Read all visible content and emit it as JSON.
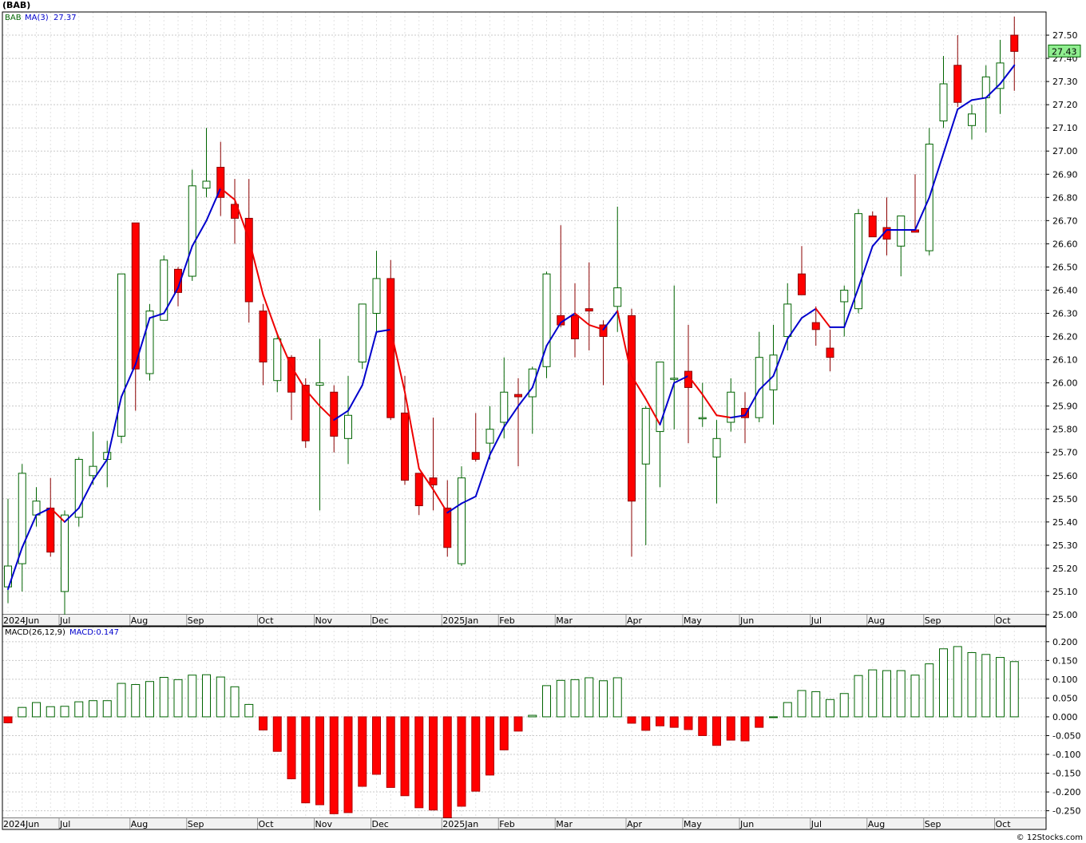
{
  "title": "(BAB)",
  "footer": "© 12Stocks.com",
  "colors": {
    "up": "#006400",
    "down": "#ff0000",
    "ma_up": "#0000cc",
    "ma_down": "#ee0000",
    "grid": "#c8c8c8",
    "last_price_bg": "#90ee90"
  },
  "chart_data": [
    {
      "type": "candlestick",
      "symbol": "BAB",
      "ma_label": "MA(3)",
      "ma_value": "27.37",
      "last_price": "27.43",
      "ylim": [
        25.0,
        27.6
      ],
      "yticks": [
        "25.00",
        "25.10",
        "25.20",
        "25.30",
        "25.40",
        "25.50",
        "25.60",
        "25.70",
        "25.80",
        "25.90",
        "26.00",
        "26.10",
        "26.20",
        "26.30",
        "26.40",
        "26.50",
        "26.60",
        "26.70",
        "26.80",
        "26.90",
        "27.00",
        "27.10",
        "27.20",
        "27.30",
        "27.40",
        "27.50"
      ],
      "month_labels": [
        {
          "label": "2024Jun",
          "week": 0
        },
        {
          "label": "Jul",
          "week": 4
        },
        {
          "label": "Aug",
          "week": 9
        },
        {
          "label": "Sep",
          "week": 13
        },
        {
          "label": "Oct",
          "week": 18
        },
        {
          "label": "Nov",
          "week": 22
        },
        {
          "label": "Dec",
          "week": 26
        },
        {
          "label": "2025Jan",
          "week": 31
        },
        {
          "label": "Feb",
          "week": 35
        },
        {
          "label": "Mar",
          "week": 39
        },
        {
          "label": "Apr",
          "week": 44
        },
        {
          "label": "May",
          "week": 48
        },
        {
          "label": "Jun",
          "week": 52
        },
        {
          "label": "Jul",
          "week": 57
        },
        {
          "label": "Aug",
          "week": 61
        },
        {
          "label": "Sep",
          "week": 65
        },
        {
          "label": "Oct",
          "week": 70
        }
      ],
      "candles": [
        {
          "o": 25.12,
          "h": 25.5,
          "l": 25.05,
          "c": 25.21
        },
        {
          "o": 25.22,
          "h": 25.65,
          "l": 25.1,
          "c": 25.61
        },
        {
          "o": 25.43,
          "h": 25.55,
          "l": 25.38,
          "c": 25.49
        },
        {
          "o": 25.46,
          "h": 25.59,
          "l": 25.25,
          "c": 25.27
        },
        {
          "o": 25.1,
          "h": 25.45,
          "l": 25.0,
          "c": 25.43
        },
        {
          "o": 25.42,
          "h": 25.68,
          "l": 25.38,
          "c": 25.67
        },
        {
          "o": 25.6,
          "h": 25.79,
          "l": 25.56,
          "c": 25.64
        },
        {
          "o": 25.67,
          "h": 25.75,
          "l": 25.55,
          "c": 25.7
        },
        {
          "o": 25.77,
          "h": 26.47,
          "l": 25.74,
          "c": 26.47
        },
        {
          "o": 26.69,
          "h": 26.69,
          "l": 25.88,
          "c": 26.06
        },
        {
          "o": 26.04,
          "h": 26.34,
          "l": 26.01,
          "c": 26.31
        },
        {
          "o": 26.27,
          "h": 26.55,
          "l": 26.27,
          "c": 26.53
        },
        {
          "o": 26.49,
          "h": 26.5,
          "l": 26.33,
          "c": 26.39
        },
        {
          "o": 26.46,
          "h": 26.92,
          "l": 26.44,
          "c": 26.85
        },
        {
          "o": 26.84,
          "h": 27.1,
          "l": 26.8,
          "c": 26.87
        },
        {
          "o": 26.93,
          "h": 27.04,
          "l": 26.72,
          "c": 26.8
        },
        {
          "o": 26.77,
          "h": 26.88,
          "l": 26.6,
          "c": 26.71
        },
        {
          "o": 26.71,
          "h": 26.88,
          "l": 26.26,
          "c": 26.35
        },
        {
          "o": 26.31,
          "h": 26.34,
          "l": 25.99,
          "c": 26.09
        },
        {
          "o": 26.01,
          "h": 26.21,
          "l": 25.96,
          "c": 26.19
        },
        {
          "o": 26.11,
          "h": 26.12,
          "l": 25.84,
          "c": 25.96
        },
        {
          "o": 25.99,
          "h": 26.02,
          "l": 25.72,
          "c": 25.75
        },
        {
          "o": 25.99,
          "h": 26.19,
          "l": 25.45,
          "c": 26.0
        },
        {
          "o": 25.96,
          "h": 25.99,
          "l": 25.7,
          "c": 25.77
        },
        {
          "o": 25.76,
          "h": 26.03,
          "l": 25.65,
          "c": 25.86
        },
        {
          "o": 26.09,
          "h": 26.34,
          "l": 26.06,
          "c": 26.34
        },
        {
          "o": 26.3,
          "h": 26.57,
          "l": 26.21,
          "c": 26.45
        },
        {
          "o": 26.45,
          "h": 26.53,
          "l": 25.84,
          "c": 25.85
        },
        {
          "o": 25.87,
          "h": 26.03,
          "l": 25.56,
          "c": 25.58
        },
        {
          "o": 25.61,
          "h": 25.61,
          "l": 25.43,
          "c": 25.47
        },
        {
          "o": 25.59,
          "h": 25.85,
          "l": 25.45,
          "c": 25.56
        },
        {
          "o": 25.46,
          "h": 25.58,
          "l": 25.25,
          "c": 25.29
        },
        {
          "o": 25.22,
          "h": 25.64,
          "l": 25.21,
          "c": 25.59
        },
        {
          "o": 25.7,
          "h": 25.87,
          "l": 25.66,
          "c": 25.67
        },
        {
          "o": 25.74,
          "h": 25.9,
          "l": 25.67,
          "c": 25.8
        },
        {
          "o": 25.83,
          "h": 26.11,
          "l": 25.76,
          "c": 25.96
        },
        {
          "o": 25.95,
          "h": 26.02,
          "l": 25.64,
          "c": 25.94
        },
        {
          "o": 25.94,
          "h": 26.07,
          "l": 25.78,
          "c": 26.06
        },
        {
          "o": 26.07,
          "h": 26.48,
          "l": 26.02,
          "c": 26.47
        },
        {
          "o": 26.29,
          "h": 26.68,
          "l": 26.24,
          "c": 26.25
        },
        {
          "o": 26.29,
          "h": 26.43,
          "l": 26.11,
          "c": 26.19
        },
        {
          "o": 26.32,
          "h": 26.52,
          "l": 26.14,
          "c": 26.31
        },
        {
          "o": 26.25,
          "h": 26.27,
          "l": 25.99,
          "c": 26.2
        },
        {
          "o": 26.33,
          "h": 26.76,
          "l": 26.22,
          "c": 26.41
        },
        {
          "o": 26.29,
          "h": 26.32,
          "l": 25.25,
          "c": 25.49
        },
        {
          "o": 25.65,
          "h": 25.9,
          "l": 25.3,
          "c": 25.89
        },
        {
          "o": 25.79,
          "h": 26.09,
          "l": 25.55,
          "c": 26.09
        },
        {
          "o": 26.02,
          "h": 26.42,
          "l": 25.8,
          "c": 26.02
        },
        {
          "o": 26.05,
          "h": 26.25,
          "l": 25.74,
          "c": 25.98
        },
        {
          "o": 25.85,
          "h": 26.0,
          "l": 25.81,
          "c": 25.85
        },
        {
          "o": 25.68,
          "h": 25.84,
          "l": 25.48,
          "c": 25.76
        },
        {
          "o": 25.83,
          "h": 26.02,
          "l": 25.79,
          "c": 25.96
        },
        {
          "o": 25.89,
          "h": 25.96,
          "l": 25.74,
          "c": 25.85
        },
        {
          "o": 25.85,
          "h": 26.22,
          "l": 25.83,
          "c": 26.11
        },
        {
          "o": 25.97,
          "h": 26.25,
          "l": 25.82,
          "c": 26.12
        },
        {
          "o": 26.2,
          "h": 26.43,
          "l": 26.14,
          "c": 26.34
        },
        {
          "o": 26.47,
          "h": 26.59,
          "l": 26.38,
          "c": 26.38
        },
        {
          "o": 26.26,
          "h": 26.33,
          "l": 26.16,
          "c": 26.23
        },
        {
          "o": 26.15,
          "h": 26.23,
          "l": 26.05,
          "c": 26.11
        },
        {
          "o": 26.35,
          "h": 26.42,
          "l": 26.2,
          "c": 26.4
        },
        {
          "o": 26.32,
          "h": 26.75,
          "l": 26.3,
          "c": 26.73
        },
        {
          "o": 26.72,
          "h": 26.74,
          "l": 26.63,
          "c": 26.63
        },
        {
          "o": 26.67,
          "h": 26.8,
          "l": 26.55,
          "c": 26.62
        },
        {
          "o": 26.59,
          "h": 26.72,
          "l": 26.46,
          "c": 26.72
        },
        {
          "o": 26.66,
          "h": 26.9,
          "l": 26.65,
          "c": 26.65
        },
        {
          "o": 26.57,
          "h": 27.1,
          "l": 26.55,
          "c": 27.03
        },
        {
          "o": 27.13,
          "h": 27.41,
          "l": 27.1,
          "c": 27.29
        },
        {
          "o": 27.37,
          "h": 27.5,
          "l": 27.19,
          "c": 27.21
        },
        {
          "o": 27.11,
          "h": 27.2,
          "l": 27.05,
          "c": 27.16
        },
        {
          "o": 27.23,
          "h": 27.37,
          "l": 27.08,
          "c": 27.32
        },
        {
          "o": 27.27,
          "h": 27.48,
          "l": 27.16,
          "c": 27.38
        },
        {
          "o": 27.5,
          "h": 27.58,
          "l": 27.26,
          "c": 27.43
        }
      ],
      "ma3": [
        25.11,
        25.29,
        25.43,
        25.46,
        25.4,
        25.46,
        25.58,
        25.67,
        25.94,
        26.08,
        26.28,
        26.3,
        26.41,
        26.59,
        26.7,
        26.84,
        26.79,
        26.62,
        26.38,
        26.21,
        26.07,
        25.97,
        25.9,
        25.84,
        25.88,
        25.99,
        26.22,
        26.23,
        25.96,
        25.63,
        25.54,
        25.44,
        25.48,
        25.51,
        25.69,
        25.81,
        25.9,
        25.98,
        26.16,
        26.26,
        26.3,
        26.25,
        26.23,
        26.31,
        26.03,
        25.93,
        25.82,
        26.0,
        26.03,
        25.95,
        25.86,
        25.85,
        25.86,
        25.97,
        26.03,
        26.19,
        26.28,
        26.32,
        26.24,
        26.24,
        26.41,
        26.59,
        26.66,
        26.66,
        26.66,
        26.8,
        26.99,
        27.18,
        27.22,
        27.23,
        27.29,
        27.37
      ],
      "month_labels_lower_same": true
    },
    {
      "type": "bar",
      "name": "MACD(26,12,9)",
      "value_label": "MACD:0.147",
      "ylim": [
        -0.27,
        0.24
      ],
      "yticks": [
        "0.200",
        "0.150",
        "0.100",
        "0.050",
        "0.000",
        "-0.050",
        "-0.100",
        "-0.150",
        "-0.200",
        "-0.250"
      ],
      "values": [
        -0.016,
        0.025,
        0.038,
        0.027,
        0.028,
        0.04,
        0.043,
        0.043,
        0.089,
        0.086,
        0.094,
        0.105,
        0.099,
        0.111,
        0.112,
        0.106,
        0.08,
        0.033,
        -0.035,
        -0.092,
        -0.165,
        -0.229,
        -0.234,
        -0.258,
        -0.255,
        -0.185,
        -0.153,
        -0.188,
        -0.21,
        -0.242,
        -0.248,
        -0.27,
        -0.238,
        -0.198,
        -0.155,
        -0.088,
        -0.038,
        0.004,
        0.083,
        0.097,
        0.099,
        0.104,
        0.096,
        0.104,
        -0.017,
        -0.036,
        -0.024,
        -0.028,
        -0.034,
        -0.05,
        -0.076,
        -0.062,
        -0.064,
        -0.028,
        0.0,
        0.038,
        0.07,
        0.067,
        0.046,
        0.062,
        0.11,
        0.125,
        0.123,
        0.123,
        0.111,
        0.141,
        0.181,
        0.187,
        0.171,
        0.166,
        0.158,
        0.147
      ]
    }
  ]
}
